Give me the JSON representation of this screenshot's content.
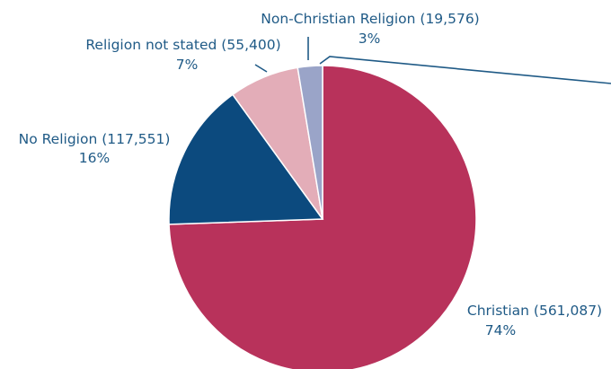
{
  "chart_data": {
    "type": "pie",
    "slices": [
      {
        "name": "Christian (561,087)",
        "pct_label": "74%",
        "value": 561087,
        "color": "#b8325b"
      },
      {
        "name": "No Religion (117,551)",
        "pct_label": "16%",
        "value": 117551,
        "color": "#0c4a7e"
      },
      {
        "name": "Religion not stated (55,400)",
        "pct_label": "7%",
        "value": 55400,
        "color": "#e3adb8"
      },
      {
        "name": "Non-Christian Religion (19,576)",
        "pct_label": "3%",
        "value": 19576,
        "color": "#9aa4c8"
      }
    ],
    "leader_color": "#1f5a86"
  }
}
